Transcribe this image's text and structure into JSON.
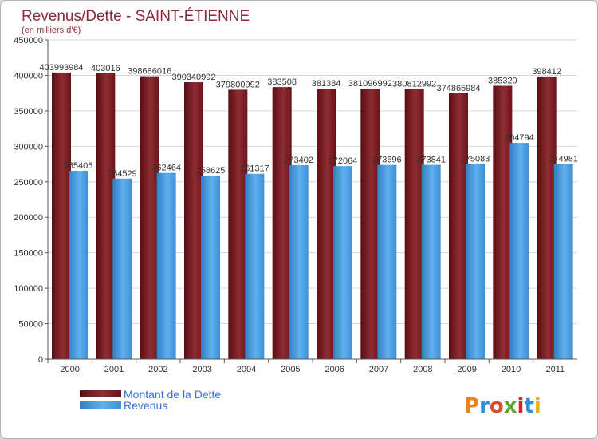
{
  "chart_data": {
    "type": "bar",
    "title": "Revenus/Dette - SAINT-ÉTIENNE",
    "subtitle": "(en milliers d'€)",
    "categories": [
      "2000",
      "2001",
      "2002",
      "2003",
      "2004",
      "2005",
      "2006",
      "2007",
      "2008",
      "2009",
      "2010",
      "2011"
    ],
    "series": [
      {
        "name": "Montant de la Dette",
        "values": [
          403993.984,
          403016,
          398686.016,
          390340.992,
          379800.992,
          383508,
          381384,
          381096.992,
          380812.992,
          374865.984,
          385320,
          398412
        ],
        "labels": [
          "403993984",
          "403016",
          "398686016",
          "390340992",
          "379800992",
          "383508",
          "381384",
          "381096992",
          "380812992",
          "374865984",
          "385320",
          "398412"
        ],
        "color": "#7a1f24"
      },
      {
        "name": "Revenus",
        "values": [
          265406,
          254529,
          262464,
          258625,
          261317,
          273402,
          272064,
          273696,
          273841,
          275083,
          304794,
          274981
        ],
        "labels": [
          "265406",
          "254529",
          "262464",
          "258625",
          "261317",
          "273402",
          "272064",
          "273696",
          "273841",
          "275083",
          "304794",
          "274981"
        ],
        "color": "#4a9fe0"
      }
    ],
    "ylim": [
      0,
      450000
    ],
    "yticks": [
      0,
      50000,
      100000,
      150000,
      200000,
      250000,
      300000,
      350000,
      400000,
      450000
    ],
    "grid": true,
    "legend_position": "bottom-left"
  },
  "brand": {
    "logo_text": "Proxiti"
  }
}
